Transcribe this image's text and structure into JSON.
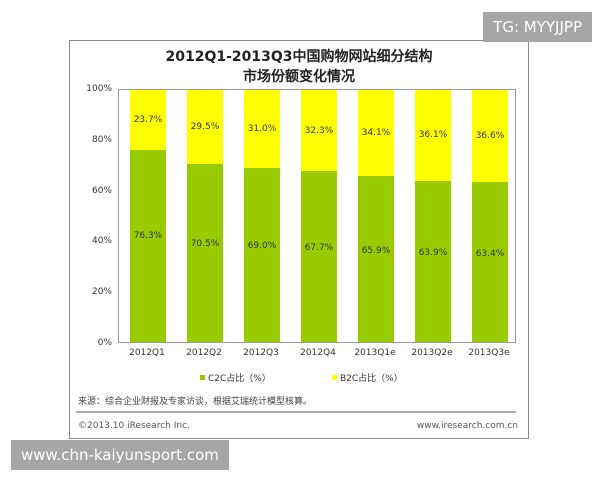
{
  "watermarks": {
    "top_right": "TG: MYYJJPP",
    "bottom_left": "www.chn-kaiyunsport.com"
  },
  "chart": {
    "title_line1": "2012Q1-2013Q3中国购物网站细分结构",
    "title_line2": "市场份额变化情况",
    "y_ticks": [
      "100%",
      "80%",
      "60%",
      "40%",
      "20%",
      "0%"
    ],
    "legend": {
      "c2c": "C2C占比（%）",
      "b2c": "B2C占比（%）"
    },
    "colors": {
      "c2c": "#99cc00",
      "b2c": "#ffff00"
    },
    "bars": [
      {
        "cat": "2012Q1",
        "c2c": 76.3,
        "b2c": 23.7,
        "c2c_label": "76.3%",
        "b2c_label": "23.7%"
      },
      {
        "cat": "2012Q2",
        "c2c": 70.5,
        "b2c": 29.5,
        "c2c_label": "70.5%",
        "b2c_label": "29.5%"
      },
      {
        "cat": "2012Q3",
        "c2c": 69.0,
        "b2c": 31.0,
        "c2c_label": "69.0%",
        "b2c_label": "31.0%"
      },
      {
        "cat": "2012Q4",
        "c2c": 67.7,
        "b2c": 32.3,
        "c2c_label": "67.7%",
        "b2c_label": "32.3%"
      },
      {
        "cat": "2013Q1e",
        "c2c": 65.9,
        "b2c": 34.1,
        "c2c_label": "65.9%",
        "b2c_label": "34.1%"
      },
      {
        "cat": "2013Q2e",
        "c2c": 63.9,
        "b2c": 36.1,
        "c2c_label": "63.9%",
        "b2c_label": "36.1%"
      },
      {
        "cat": "2013Q3e",
        "c2c": 63.4,
        "b2c": 36.6,
        "c2c_label": "63.4%",
        "b2c_label": "36.6%"
      }
    ],
    "source": "来源：综合企业财报及专家访谈，根据艾瑞统计模型核算。",
    "copyright": "©2013.10 iResearch Inc.",
    "url": "www.iresearch.com.cn"
  },
  "chart_data": {
    "type": "bar",
    "stacked": true,
    "percent": true,
    "title": "2012Q1-2013Q3中国购物网站细分结构市场份额变化情况",
    "categories": [
      "2012Q1",
      "2012Q2",
      "2012Q3",
      "2012Q4",
      "2013Q1e",
      "2013Q2e",
      "2013Q3e"
    ],
    "series": [
      {
        "name": "C2C占比（%）",
        "values": [
          76.3,
          70.5,
          69.0,
          67.7,
          65.9,
          63.9,
          63.4
        ]
      },
      {
        "name": "B2C占比（%）",
        "values": [
          23.7,
          29.5,
          31.0,
          32.3,
          34.1,
          36.1,
          36.6
        ]
      }
    ],
    "xlabel": "",
    "ylabel": "",
    "ylim": [
      0,
      100
    ],
    "yticks": [
      "0%",
      "20%",
      "40%",
      "60%",
      "80%",
      "100%"
    ],
    "grid": false,
    "legend_position": "bottom",
    "annotations": [
      "来源：综合企业财报及专家访谈，根据艾瑞统计模型核算。",
      "©2013.10 iResearch Inc.",
      "www.iresearch.com.cn"
    ]
  }
}
